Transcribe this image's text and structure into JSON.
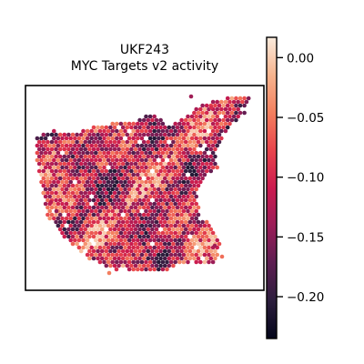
{
  "chart_data": {
    "type": "heatmap",
    "subtype": "spatial-hex-scatter",
    "title_lines": [
      "UKF243",
      "MYC Targets v2 activity"
    ],
    "xlabel": "",
    "ylabel": "",
    "axes_ticks_visible": false,
    "grid": false,
    "legend": "none",
    "colorbar": {
      "position": "right",
      "colormap": "rocket",
      "vmin": -0.235,
      "vmax": 0.017,
      "ticks": [
        0.0,
        -0.05,
        -0.1,
        -0.15,
        -0.2
      ],
      "tick_labels": [
        "0.00",
        "−0.05",
        "−0.10",
        "−0.15",
        "−0.20"
      ]
    },
    "value_summary": {
      "typical_range": [
        -0.2,
        -0.03
      ],
      "dominant_level": -0.1
    }
  },
  "colors": {
    "stops": [
      "#03051a",
      "#2c1e3d",
      "#5c1e51",
      "#9a1d57",
      "#cb1b4f",
      "#e8454c",
      "#f3805f",
      "#f6b48e",
      "#faebdd"
    ],
    "frame": "#000000",
    "background": "#ffffff"
  }
}
